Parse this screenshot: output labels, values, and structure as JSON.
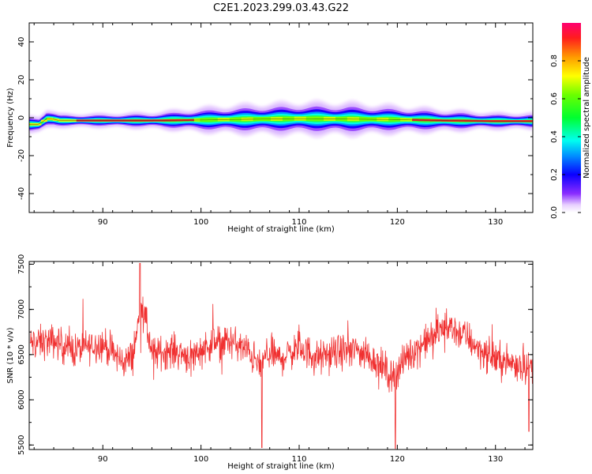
{
  "title": "C2E1.2023.299.03.43.G22",
  "chart_data": [
    {
      "type": "heatmap",
      "xlabel": "Height of straight line (km)",
      "ylabel": "Frequency (Hz)",
      "xlim": [
        82.5,
        133.8
      ],
      "ylim": [
        -50,
        50
      ],
      "xticks": [
        90,
        100,
        110,
        120,
        130
      ],
      "yticks": [
        40,
        20,
        0,
        -20,
        -40
      ],
      "colorbar": {
        "label": "Normalized spectral amplitude",
        "range": [
          0,
          1
        ],
        "ticks": [
          0.0,
          0.2,
          0.4,
          0.6,
          0.8
        ],
        "colormap": "gist_rainbow"
      },
      "ridge": {
        "x": [
          82.8,
          83.5,
          84.3,
          85.0,
          85.6,
          86.5,
          90,
          95,
          100,
          105,
          110,
          115,
          120,
          125,
          130,
          133.3
        ],
        "y_hz": [
          -3.5,
          -3.5,
          -0.5,
          -0.8,
          -1.5,
          -1.5,
          -1.5,
          -1.5,
          -1.2,
          -0.8,
          -0.5,
          -0.7,
          -1.0,
          -1.5,
          -1.8,
          -1.8
        ],
        "width_hz": [
          3,
          3,
          4,
          3,
          2.5,
          2.5,
          2.5,
          3,
          4.5,
          5.5,
          6,
          6,
          5,
          4,
          3,
          3
        ]
      }
    },
    {
      "type": "line",
      "xlabel": "Height of straight line (km)",
      "ylabel": "SNR (10 * v/v)",
      "xlim": [
        82.5,
        133.8
      ],
      "ylim": [
        5450,
        7530
      ],
      "xticks": [
        90,
        100,
        110,
        120,
        130
      ],
      "yticks": [
        7500,
        7000,
        6500,
        6000,
        5500
      ],
      "series_color": "#f03030",
      "envelope": {
        "x": [
          82.6,
          85,
          87,
          89,
          90,
          92,
          93,
          94,
          95,
          97,
          99,
          101,
          103,
          105,
          106,
          107,
          108,
          110,
          112,
          114,
          116,
          118,
          119.5,
          121,
          123,
          125,
          127,
          129,
          131,
          133.7
        ],
        "y": [
          6620,
          6650,
          6550,
          6600,
          6620,
          6420,
          6470,
          7080,
          6500,
          6550,
          6480,
          6620,
          6650,
          6520,
          6350,
          6540,
          6450,
          6580,
          6460,
          6530,
          6550,
          6420,
          6250,
          6480,
          6650,
          6820,
          6700,
          6500,
          6420,
          6370
        ]
      },
      "notable_points": [
        {
          "x": 93.8,
          "y": 7510
        },
        {
          "x": 106.2,
          "y": 5470
        },
        {
          "x": 119.8,
          "y": 5460
        },
        {
          "x": 133.4,
          "y": 5650
        }
      ],
      "noise_amplitude": 160,
      "n_points": 1400
    }
  ]
}
